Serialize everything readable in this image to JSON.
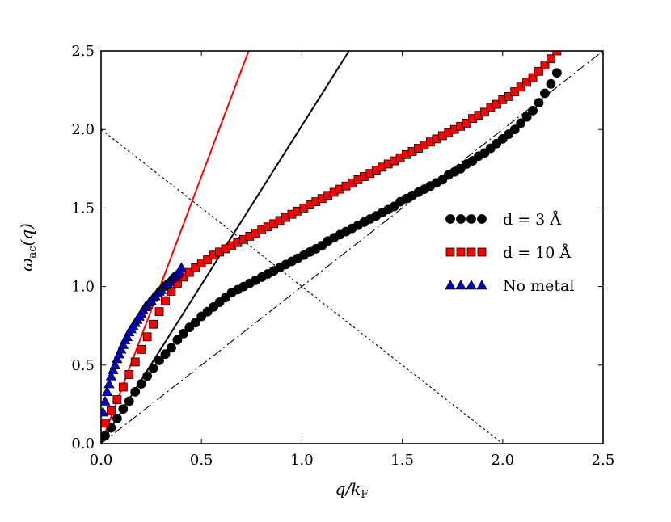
{
  "chart_data": {
    "type": "scatter",
    "xlabel": "q/k_F",
    "ylabel": "ω_ac(q)",
    "xlim": [
      0,
      2.5
    ],
    "ylim": [
      0,
      2.5
    ],
    "xticks": [
      "0.0",
      "0.5",
      "1.0",
      "1.5",
      "2.0",
      "2.5"
    ],
    "yticks": [
      "0.0",
      "0.5",
      "1.0",
      "1.5",
      "2.0",
      "2.5"
    ],
    "legend_position": "right",
    "series": [
      {
        "name": "d = 3 Å",
        "marker": "circle",
        "color": "#000000",
        "x": [
          0.02,
          0.05,
          0.08,
          0.11,
          0.14,
          0.17,
          0.2,
          0.23,
          0.26,
          0.29,
          0.32,
          0.35,
          0.38,
          0.41,
          0.44,
          0.47,
          0.5,
          0.53,
          0.56,
          0.59,
          0.62,
          0.65,
          0.68,
          0.71,
          0.74,
          0.77,
          0.8,
          0.83,
          0.86,
          0.89,
          0.92,
          0.95,
          0.98,
          1.01,
          1.04,
          1.07,
          1.1,
          1.13,
          1.16,
          1.19,
          1.22,
          1.25,
          1.28,
          1.31,
          1.34,
          1.37,
          1.4,
          1.43,
          1.46,
          1.49,
          1.52,
          1.55,
          1.58,
          1.61,
          1.64,
          1.67,
          1.7,
          1.73,
          1.76,
          1.79,
          1.82,
          1.85,
          1.88,
          1.91,
          1.94,
          1.97,
          2.0,
          2.03,
          2.06,
          2.09,
          2.12,
          2.15,
          2.18,
          2.21,
          2.24,
          2.27
        ],
        "y": [
          0.05,
          0.1,
          0.16,
          0.22,
          0.27,
          0.33,
          0.38,
          0.43,
          0.48,
          0.53,
          0.57,
          0.61,
          0.66,
          0.7,
          0.74,
          0.77,
          0.81,
          0.84,
          0.87,
          0.9,
          0.93,
          0.96,
          0.98,
          1.0,
          1.02,
          1.04,
          1.06,
          1.08,
          1.1,
          1.12,
          1.14,
          1.16,
          1.18,
          1.2,
          1.22,
          1.24,
          1.26,
          1.29,
          1.31,
          1.33,
          1.35,
          1.37,
          1.39,
          1.41,
          1.43,
          1.45,
          1.47,
          1.49,
          1.51,
          1.54,
          1.56,
          1.58,
          1.6,
          1.62,
          1.64,
          1.66,
          1.68,
          1.71,
          1.73,
          1.75,
          1.78,
          1.8,
          1.83,
          1.85,
          1.88,
          1.91,
          1.94,
          1.97,
          2.0,
          2.04,
          2.08,
          2.12,
          2.17,
          2.23,
          2.29,
          2.36
        ]
      },
      {
        "name": "d = 10 Å",
        "marker": "square",
        "color": "#ff0000",
        "x": [
          0.02,
          0.05,
          0.08,
          0.11,
          0.14,
          0.17,
          0.2,
          0.23,
          0.26,
          0.29,
          0.32,
          0.35,
          0.38,
          0.41,
          0.44,
          0.47,
          0.5,
          0.53,
          0.56,
          0.59,
          0.62,
          0.65,
          0.68,
          0.71,
          0.74,
          0.77,
          0.8,
          0.83,
          0.86,
          0.89,
          0.92,
          0.95,
          0.98,
          1.01,
          1.04,
          1.07,
          1.1,
          1.13,
          1.16,
          1.19,
          1.22,
          1.25,
          1.28,
          1.31,
          1.34,
          1.37,
          1.4,
          1.43,
          1.46,
          1.49,
          1.52,
          1.55,
          1.58,
          1.61,
          1.64,
          1.67,
          1.7,
          1.73,
          1.76,
          1.79,
          1.82,
          1.85,
          1.88,
          1.91,
          1.94,
          1.97,
          2.0,
          2.03,
          2.06,
          2.09,
          2.12,
          2.15,
          2.18,
          2.21,
          2.24,
          2.27
        ],
        "y": [
          0.13,
          0.21,
          0.28,
          0.36,
          0.44,
          0.52,
          0.6,
          0.68,
          0.76,
          0.84,
          0.91,
          0.97,
          1.02,
          1.06,
          1.09,
          1.12,
          1.15,
          1.17,
          1.2,
          1.22,
          1.24,
          1.26,
          1.28,
          1.3,
          1.32,
          1.34,
          1.36,
          1.38,
          1.4,
          1.42,
          1.44,
          1.46,
          1.48,
          1.5,
          1.52,
          1.54,
          1.56,
          1.58,
          1.6,
          1.62,
          1.64,
          1.66,
          1.68,
          1.7,
          1.72,
          1.74,
          1.76,
          1.78,
          1.8,
          1.82,
          1.84,
          1.86,
          1.88,
          1.9,
          1.92,
          1.94,
          1.96,
          1.98,
          2.0,
          2.02,
          2.04,
          2.07,
          2.09,
          2.11,
          2.14,
          2.16,
          2.19,
          2.21,
          2.24,
          2.27,
          2.3,
          2.33,
          2.37,
          2.41,
          2.45,
          2.5
        ]
      },
      {
        "name": "No metal",
        "marker": "triangle",
        "color": "#0000cc",
        "x": [
          0.01,
          0.02,
          0.03,
          0.04,
          0.05,
          0.06,
          0.07,
          0.08,
          0.09,
          0.1,
          0.11,
          0.12,
          0.13,
          0.14,
          0.15,
          0.16,
          0.17,
          0.18,
          0.19,
          0.2,
          0.21,
          0.22,
          0.23,
          0.24,
          0.25,
          0.26,
          0.27,
          0.28,
          0.29,
          0.3,
          0.31,
          0.32,
          0.33,
          0.34,
          0.35,
          0.36,
          0.37,
          0.38,
          0.39,
          0.4
        ],
        "y": [
          0.2,
          0.27,
          0.33,
          0.38,
          0.43,
          0.47,
          0.5,
          0.54,
          0.57,
          0.6,
          0.63,
          0.66,
          0.68,
          0.71,
          0.73,
          0.75,
          0.77,
          0.79,
          0.81,
          0.83,
          0.85,
          0.87,
          0.88,
          0.9,
          0.91,
          0.93,
          0.94,
          0.96,
          0.97,
          0.98,
          1.0,
          1.01,
          1.02,
          1.03,
          1.05,
          1.06,
          1.07,
          1.08,
          1.09,
          1.12
        ]
      }
    ],
    "lines": [
      {
        "style": "solid",
        "color": "#ff0000",
        "x": [
          0,
          0.735
        ],
        "y": [
          0,
          2.5
        ]
      },
      {
        "style": "solid",
        "color": "#000000",
        "x": [
          0,
          1.235
        ],
        "y": [
          0,
          2.5
        ]
      },
      {
        "style": "dotted",
        "color": "#000000",
        "x": [
          0,
          2.0
        ],
        "y": [
          2.0,
          0
        ]
      },
      {
        "style": "dashdot",
        "color": "#000000",
        "x": [
          0,
          2.5
        ],
        "y": [
          0,
          2.5
        ]
      }
    ],
    "grid": false
  }
}
